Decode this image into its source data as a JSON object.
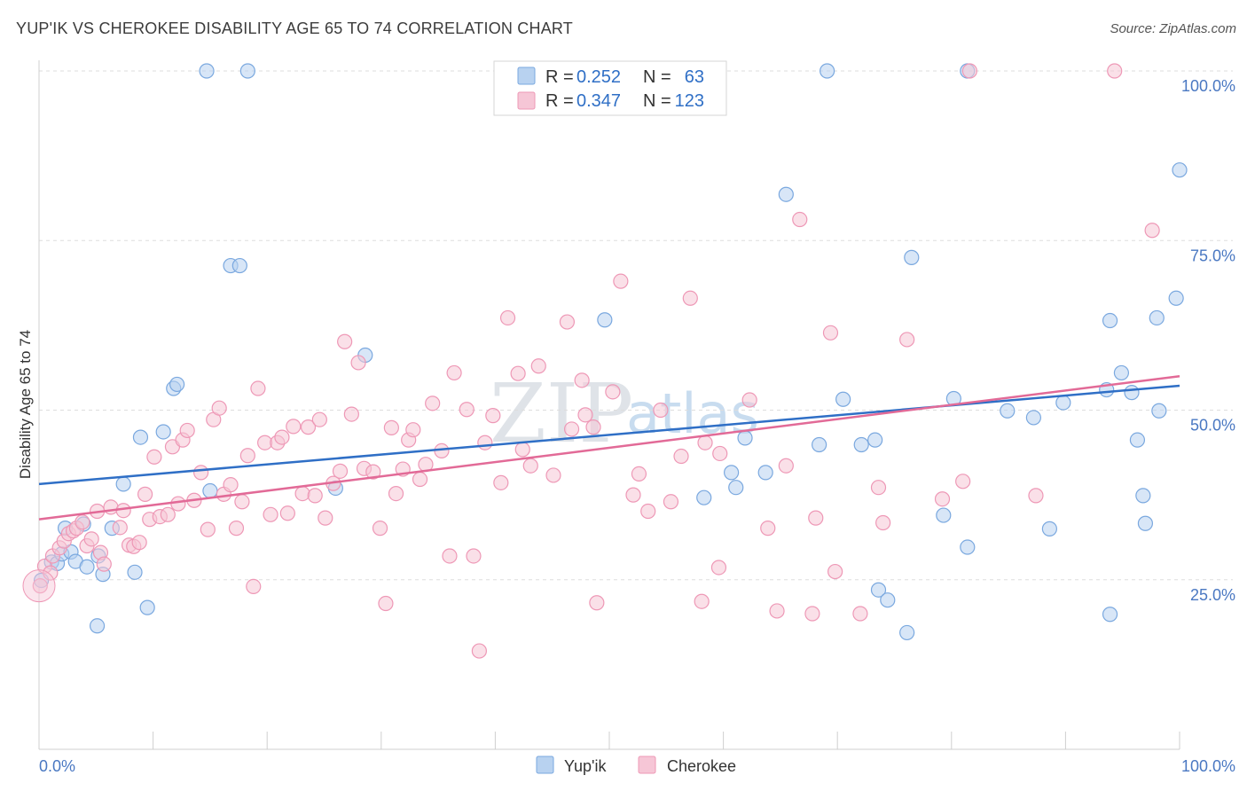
{
  "title": "YUP'IK VS CHEROKEE DISABILITY AGE 65 TO 74 CORRELATION CHART",
  "source": "Source: ZipAtlas.com",
  "watermark": {
    "zip": "ZIP",
    "atlas": "atlas"
  },
  "colors": {
    "yupik_fill": "#b8d2f0",
    "yupik_stroke": "#7aa8df",
    "yupik_line": "#2f6fc6",
    "cherokee_fill": "#f6c6d6",
    "cherokee_stroke": "#ee98b6",
    "cherokee_line": "#e26a97",
    "tick_label": "#4a78c2",
    "grid": "#dddddd"
  },
  "legend_top": {
    "rows": [
      {
        "r_label": "R =",
        "r_value": "0.252",
        "n_label": "N =",
        "n_value": "63"
      },
      {
        "r_label": "R =",
        "r_value": "0.347",
        "n_label": "N =",
        "n_value": "123"
      }
    ]
  },
  "legend_bottom": [
    "Yup'ik",
    "Cherokee"
  ],
  "chart_data": {
    "type": "scatter",
    "title": "YUP'IK VS CHEROKEE DISABILITY AGE 65 TO 74 CORRELATION CHART",
    "xlabel": "",
    "ylabel": "Disability Age 65 to 74",
    "xlim": [
      0,
      100
    ],
    "ylim": [
      0,
      100
    ],
    "x_tick_labels": [
      "0.0%",
      "100.0%"
    ],
    "y_ticks": [
      25,
      50,
      75,
      100
    ],
    "y_tick_labels": [
      "25.0%",
      "50.0%",
      "75.0%",
      "100.0%"
    ],
    "grid": "horizontal dashed",
    "legend": "bottom-center",
    "series": [
      {
        "name": "Yup'ik",
        "r": 0.252,
        "n": 63,
        "trend": [
          [
            0,
            39.1
          ],
          [
            100,
            53.6
          ]
        ],
        "points": [
          [
            0.2,
            24.9
          ],
          [
            1.1,
            27.6
          ],
          [
            1.6,
            27.4
          ],
          [
            2.0,
            28.8
          ],
          [
            2.3,
            32.6
          ],
          [
            2.8,
            29.1
          ],
          [
            3.2,
            27.7
          ],
          [
            3.9,
            33.2
          ],
          [
            4.2,
            26.9
          ],
          [
            5.1,
            18.2
          ],
          [
            5.2,
            28.5
          ],
          [
            5.6,
            25.8
          ],
          [
            6.4,
            32.6
          ],
          [
            7.4,
            39.1
          ],
          [
            8.4,
            26.1
          ],
          [
            8.9,
            46.0
          ],
          [
            9.5,
            20.9
          ],
          [
            10.9,
            46.8
          ],
          [
            11.8,
            53.2
          ],
          [
            12.1,
            53.8
          ],
          [
            14.7,
            100.0
          ],
          [
            15.0,
            38.1
          ],
          [
            16.8,
            71.3
          ],
          [
            17.6,
            71.3
          ],
          [
            18.3,
            100.0
          ],
          [
            26.0,
            38.5
          ],
          [
            28.6,
            58.1
          ],
          [
            49.6,
            63.3
          ],
          [
            58.3,
            37.1
          ],
          [
            60.7,
            40.8
          ],
          [
            61.1,
            38.6
          ],
          [
            61.9,
            45.9
          ],
          [
            63.7,
            40.8
          ],
          [
            65.5,
            81.8
          ],
          [
            68.4,
            44.9
          ],
          [
            69.1,
            100.0
          ],
          [
            70.5,
            51.6
          ],
          [
            72.1,
            44.9
          ],
          [
            73.3,
            45.6
          ],
          [
            73.6,
            23.5
          ],
          [
            74.4,
            22.0
          ],
          [
            76.1,
            17.2
          ],
          [
            76.5,
            72.5
          ],
          [
            79.3,
            34.5
          ],
          [
            80.2,
            51.7
          ],
          [
            81.4,
            100.0
          ],
          [
            81.4,
            29.8
          ],
          [
            84.9,
            49.9
          ],
          [
            87.2,
            48.9
          ],
          [
            88.6,
            32.5
          ],
          [
            89.8,
            51.1
          ],
          [
            93.6,
            53.0
          ],
          [
            93.9,
            19.9
          ],
          [
            93.9,
            63.2
          ],
          [
            94.9,
            55.5
          ],
          [
            95.8,
            52.6
          ],
          [
            96.3,
            45.6
          ],
          [
            96.8,
            37.4
          ],
          [
            97.0,
            33.3
          ],
          [
            98.0,
            63.6
          ],
          [
            98.2,
            49.9
          ],
          [
            99.7,
            66.5
          ],
          [
            100.0,
            85.4
          ]
        ]
      },
      {
        "name": "Cherokee",
        "r": 0.347,
        "n": 123,
        "trend": [
          [
            0,
            33.9
          ],
          [
            100,
            55.0
          ]
        ],
        "points": [
          [
            0.1,
            24.1
          ],
          [
            0.5,
            27.0
          ],
          [
            1.0,
            26.0
          ],
          [
            1.2,
            28.5
          ],
          [
            1.8,
            29.7
          ],
          [
            2.2,
            30.7
          ],
          [
            2.6,
            31.8
          ],
          [
            3.0,
            32.2
          ],
          [
            3.3,
            32.6
          ],
          [
            3.8,
            33.5
          ],
          [
            4.2,
            30.0
          ],
          [
            4.6,
            31.0
          ],
          [
            5.1,
            35.1
          ],
          [
            5.4,
            29.0
          ],
          [
            5.7,
            27.3
          ],
          [
            6.3,
            35.7
          ],
          [
            7.1,
            32.7
          ],
          [
            7.4,
            35.2
          ],
          [
            7.9,
            30.1
          ],
          [
            8.3,
            29.9
          ],
          [
            8.8,
            30.5
          ],
          [
            9.3,
            37.6
          ],
          [
            9.7,
            33.9
          ],
          [
            10.1,
            43.1
          ],
          [
            10.6,
            34.3
          ],
          [
            11.3,
            34.6
          ],
          [
            11.7,
            44.6
          ],
          [
            12.2,
            36.2
          ],
          [
            12.6,
            45.6
          ],
          [
            13.0,
            47.0
          ],
          [
            13.6,
            36.7
          ],
          [
            14.2,
            40.8
          ],
          [
            14.8,
            32.4
          ],
          [
            15.3,
            48.6
          ],
          [
            15.8,
            50.3
          ],
          [
            16.2,
            37.6
          ],
          [
            16.8,
            39.0
          ],
          [
            17.3,
            32.6
          ],
          [
            17.8,
            36.5
          ],
          [
            18.3,
            43.3
          ],
          [
            18.8,
            24.0
          ],
          [
            19.2,
            53.2
          ],
          [
            19.8,
            45.2
          ],
          [
            20.3,
            34.6
          ],
          [
            20.9,
            45.2
          ],
          [
            21.3,
            46.0
          ],
          [
            21.8,
            34.8
          ],
          [
            22.3,
            47.6
          ],
          [
            23.1,
            37.7
          ],
          [
            23.6,
            47.5
          ],
          [
            24.2,
            37.4
          ],
          [
            24.6,
            48.6
          ],
          [
            25.1,
            34.1
          ],
          [
            25.8,
            39.2
          ],
          [
            26.4,
            41.0
          ],
          [
            26.8,
            60.1
          ],
          [
            27.4,
            49.4
          ],
          [
            28.0,
            57.0
          ],
          [
            28.5,
            41.4
          ],
          [
            29.3,
            40.9
          ],
          [
            29.9,
            32.6
          ],
          [
            30.4,
            21.5
          ],
          [
            30.9,
            47.4
          ],
          [
            31.3,
            37.7
          ],
          [
            31.9,
            41.3
          ],
          [
            32.4,
            45.6
          ],
          [
            32.8,
            47.1
          ],
          [
            33.4,
            39.8
          ],
          [
            33.9,
            42.0
          ],
          [
            34.5,
            51.0
          ],
          [
            35.3,
            44.0
          ],
          [
            36.0,
            28.5
          ],
          [
            36.4,
            55.5
          ],
          [
            37.5,
            50.1
          ],
          [
            38.1,
            28.5
          ],
          [
            38.6,
            14.5
          ],
          [
            39.1,
            45.2
          ],
          [
            39.8,
            49.2
          ],
          [
            40.5,
            39.3
          ],
          [
            41.1,
            63.6
          ],
          [
            42.0,
            55.4
          ],
          [
            42.4,
            44.2
          ],
          [
            43.1,
            41.8
          ],
          [
            43.8,
            56.5
          ],
          [
            45.1,
            40.4
          ],
          [
            46.3,
            63.0
          ],
          [
            46.7,
            47.2
          ],
          [
            47.6,
            54.4
          ],
          [
            47.9,
            49.3
          ],
          [
            48.6,
            47.5
          ],
          [
            48.9,
            21.6
          ],
          [
            50.3,
            52.7
          ],
          [
            51.0,
            69.0
          ],
          [
            52.1,
            37.5
          ],
          [
            52.6,
            40.6
          ],
          [
            53.4,
            35.1
          ],
          [
            54.5,
            50.0
          ],
          [
            55.4,
            36.5
          ],
          [
            56.3,
            43.2
          ],
          [
            57.1,
            66.5
          ],
          [
            58.1,
            21.8
          ],
          [
            58.4,
            45.2
          ],
          [
            59.6,
            26.8
          ],
          [
            59.7,
            43.6
          ],
          [
            62.3,
            51.5
          ],
          [
            63.9,
            32.6
          ],
          [
            64.7,
            20.4
          ],
          [
            65.5,
            41.8
          ],
          [
            66.7,
            78.1
          ],
          [
            67.8,
            20.0
          ],
          [
            68.1,
            34.1
          ],
          [
            69.4,
            61.4
          ],
          [
            69.8,
            26.2
          ],
          [
            72.0,
            20.0
          ],
          [
            73.6,
            38.6
          ],
          [
            74.0,
            33.4
          ],
          [
            76.1,
            60.4
          ],
          [
            79.2,
            36.9
          ],
          [
            81.0,
            39.5
          ],
          [
            81.6,
            100.0
          ],
          [
            87.4,
            37.4
          ],
          [
            94.3,
            100.0
          ],
          [
            97.6,
            76.5
          ]
        ]
      }
    ]
  }
}
